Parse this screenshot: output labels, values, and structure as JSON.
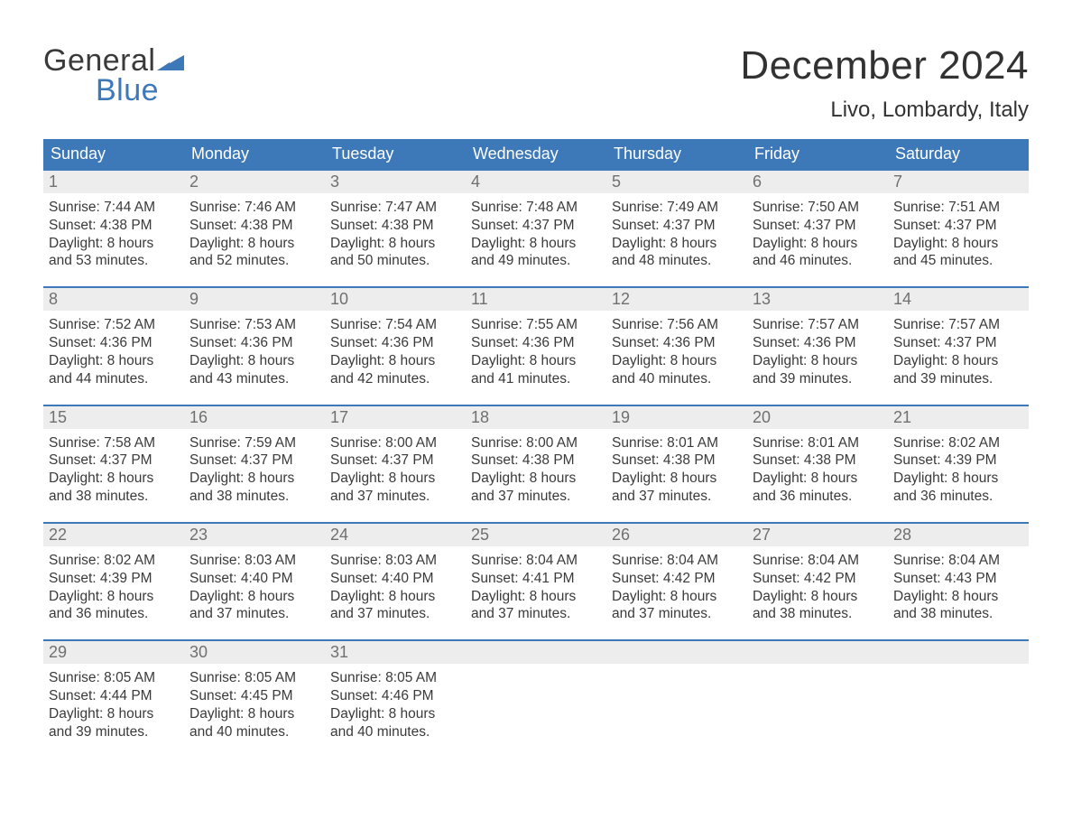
{
  "logo": {
    "word1": "General",
    "word2": "Blue",
    "color_dark": "#3a3a3a",
    "color_blue": "#3d78b8"
  },
  "title": "December 2024",
  "location": "Livo, Lombardy, Italy",
  "colors": {
    "header_bg": "#3d78b8",
    "header_fg": "#ffffff",
    "daynum_bg": "#ededed",
    "daynum_fg": "#707070",
    "body_fg": "#3a3a3a",
    "week_border": "#3d78b8",
    "page_bg": "#ffffff"
  },
  "fonts": {
    "title_size_pt": 33,
    "location_size_pt": 18,
    "dow_size_pt": 14,
    "daynum_size_pt": 14,
    "body_size_pt": 12
  },
  "days_of_week": [
    "Sunday",
    "Monday",
    "Tuesday",
    "Wednesday",
    "Thursday",
    "Friday",
    "Saturday"
  ],
  "field_labels": {
    "sunrise": "Sunrise:",
    "sunset": "Sunset:",
    "daylight": "Daylight:"
  },
  "weeks": [
    [
      {
        "n": "1",
        "sunrise": "7:44 AM",
        "sunset": "4:38 PM",
        "dl1": "8 hours",
        "dl2": "and 53 minutes."
      },
      {
        "n": "2",
        "sunrise": "7:46 AM",
        "sunset": "4:38 PM",
        "dl1": "8 hours",
        "dl2": "and 52 minutes."
      },
      {
        "n": "3",
        "sunrise": "7:47 AM",
        "sunset": "4:38 PM",
        "dl1": "8 hours",
        "dl2": "and 50 minutes."
      },
      {
        "n": "4",
        "sunrise": "7:48 AM",
        "sunset": "4:37 PM",
        "dl1": "8 hours",
        "dl2": "and 49 minutes."
      },
      {
        "n": "5",
        "sunrise": "7:49 AM",
        "sunset": "4:37 PM",
        "dl1": "8 hours",
        "dl2": "and 48 minutes."
      },
      {
        "n": "6",
        "sunrise": "7:50 AM",
        "sunset": "4:37 PM",
        "dl1": "8 hours",
        "dl2": "and 46 minutes."
      },
      {
        "n": "7",
        "sunrise": "7:51 AM",
        "sunset": "4:37 PM",
        "dl1": "8 hours",
        "dl2": "and 45 minutes."
      }
    ],
    [
      {
        "n": "8",
        "sunrise": "7:52 AM",
        "sunset": "4:36 PM",
        "dl1": "8 hours",
        "dl2": "and 44 minutes."
      },
      {
        "n": "9",
        "sunrise": "7:53 AM",
        "sunset": "4:36 PM",
        "dl1": "8 hours",
        "dl2": "and 43 minutes."
      },
      {
        "n": "10",
        "sunrise": "7:54 AM",
        "sunset": "4:36 PM",
        "dl1": "8 hours",
        "dl2": "and 42 minutes."
      },
      {
        "n": "11",
        "sunrise": "7:55 AM",
        "sunset": "4:36 PM",
        "dl1": "8 hours",
        "dl2": "and 41 minutes."
      },
      {
        "n": "12",
        "sunrise": "7:56 AM",
        "sunset": "4:36 PM",
        "dl1": "8 hours",
        "dl2": "and 40 minutes."
      },
      {
        "n": "13",
        "sunrise": "7:57 AM",
        "sunset": "4:36 PM",
        "dl1": "8 hours",
        "dl2": "and 39 minutes."
      },
      {
        "n": "14",
        "sunrise": "7:57 AM",
        "sunset": "4:37 PM",
        "dl1": "8 hours",
        "dl2": "and 39 minutes."
      }
    ],
    [
      {
        "n": "15",
        "sunrise": "7:58 AM",
        "sunset": "4:37 PM",
        "dl1": "8 hours",
        "dl2": "and 38 minutes."
      },
      {
        "n": "16",
        "sunrise": "7:59 AM",
        "sunset": "4:37 PM",
        "dl1": "8 hours",
        "dl2": "and 38 minutes."
      },
      {
        "n": "17",
        "sunrise": "8:00 AM",
        "sunset": "4:37 PM",
        "dl1": "8 hours",
        "dl2": "and 37 minutes."
      },
      {
        "n": "18",
        "sunrise": "8:00 AM",
        "sunset": "4:38 PM",
        "dl1": "8 hours",
        "dl2": "and 37 minutes."
      },
      {
        "n": "19",
        "sunrise": "8:01 AM",
        "sunset": "4:38 PM",
        "dl1": "8 hours",
        "dl2": "and 37 minutes."
      },
      {
        "n": "20",
        "sunrise": "8:01 AM",
        "sunset": "4:38 PM",
        "dl1": "8 hours",
        "dl2": "and 36 minutes."
      },
      {
        "n": "21",
        "sunrise": "8:02 AM",
        "sunset": "4:39 PM",
        "dl1": "8 hours",
        "dl2": "and 36 minutes."
      }
    ],
    [
      {
        "n": "22",
        "sunrise": "8:02 AM",
        "sunset": "4:39 PM",
        "dl1": "8 hours",
        "dl2": "and 36 minutes."
      },
      {
        "n": "23",
        "sunrise": "8:03 AM",
        "sunset": "4:40 PM",
        "dl1": "8 hours",
        "dl2": "and 37 minutes."
      },
      {
        "n": "24",
        "sunrise": "8:03 AM",
        "sunset": "4:40 PM",
        "dl1": "8 hours",
        "dl2": "and 37 minutes."
      },
      {
        "n": "25",
        "sunrise": "8:04 AM",
        "sunset": "4:41 PM",
        "dl1": "8 hours",
        "dl2": "and 37 minutes."
      },
      {
        "n": "26",
        "sunrise": "8:04 AM",
        "sunset": "4:42 PM",
        "dl1": "8 hours",
        "dl2": "and 37 minutes."
      },
      {
        "n": "27",
        "sunrise": "8:04 AM",
        "sunset": "4:42 PM",
        "dl1": "8 hours",
        "dl2": "and 38 minutes."
      },
      {
        "n": "28",
        "sunrise": "8:04 AM",
        "sunset": "4:43 PM",
        "dl1": "8 hours",
        "dl2": "and 38 minutes."
      }
    ],
    [
      {
        "n": "29",
        "sunrise": "8:05 AM",
        "sunset": "4:44 PM",
        "dl1": "8 hours",
        "dl2": "and 39 minutes."
      },
      {
        "n": "30",
        "sunrise": "8:05 AM",
        "sunset": "4:45 PM",
        "dl1": "8 hours",
        "dl2": "and 40 minutes."
      },
      {
        "n": "31",
        "sunrise": "8:05 AM",
        "sunset": "4:46 PM",
        "dl1": "8 hours",
        "dl2": "and 40 minutes."
      },
      {
        "empty": true
      },
      {
        "empty": true
      },
      {
        "empty": true
      },
      {
        "empty": true
      }
    ]
  ]
}
